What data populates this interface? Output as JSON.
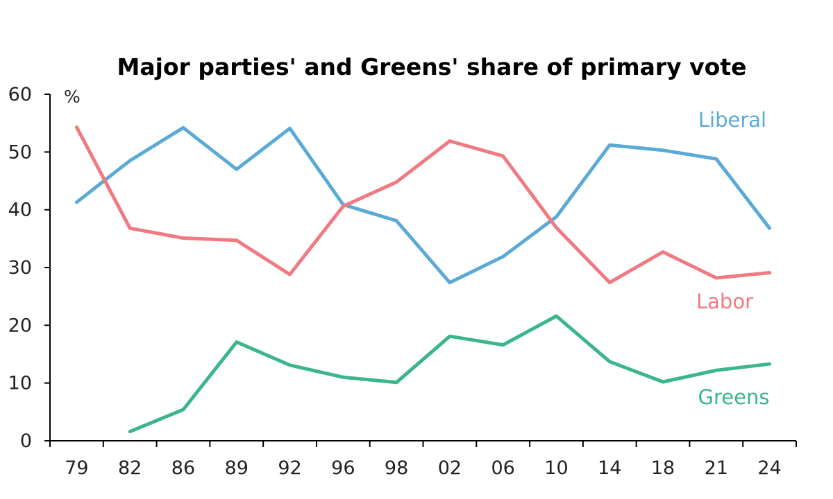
{
  "chart_data": {
    "type": "line",
    "title": "Major parties' and Greens' share of primary vote",
    "unit_label": "%",
    "xlabel": "",
    "ylabel": "",
    "categories": [
      "79",
      "82",
      "86",
      "89",
      "92",
      "96",
      "98",
      "02",
      "06",
      "10",
      "14",
      "18",
      "21",
      "24"
    ],
    "ylim": [
      0,
      60
    ],
    "yticks": [
      0,
      10,
      20,
      30,
      40,
      50,
      60
    ],
    "grid": false,
    "legend": "inline labels",
    "series": [
      {
        "name": "Liberal",
        "color": "#5BAAD6",
        "values": [
          41.3,
          48.5,
          54.2,
          47.0,
          54.1,
          40.9,
          38.1,
          27.4,
          31.9,
          38.8,
          51.2,
          50.3,
          48.8,
          36.8
        ]
      },
      {
        "name": "Labor",
        "color": "#F07A82",
        "values": [
          54.3,
          36.8,
          35.1,
          34.7,
          28.8,
          40.6,
          44.8,
          51.9,
          49.3,
          36.9,
          27.4,
          32.7,
          28.2,
          29.1
        ]
      },
      {
        "name": "Greens",
        "color": "#3BB58A",
        "values": [
          null,
          1.6,
          5.4,
          17.1,
          13.1,
          11.0,
          10.1,
          18.1,
          16.6,
          21.6,
          13.7,
          10.2,
          12.2,
          13.3
        ]
      }
    ]
  }
}
